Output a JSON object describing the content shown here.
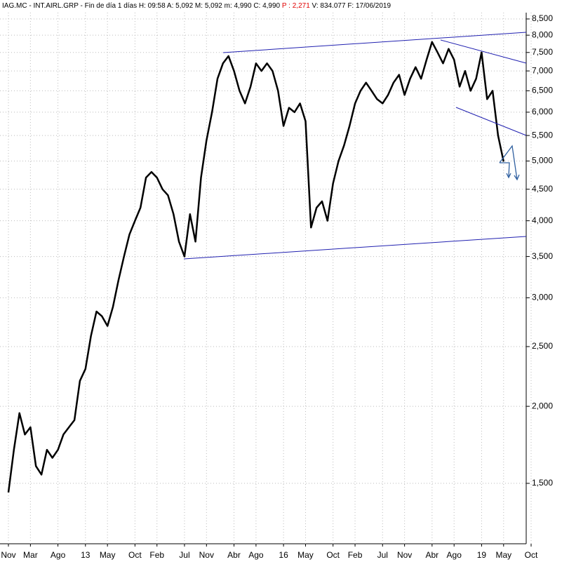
{
  "chart_data": {
    "type": "line",
    "title": "IAG.MC - INT.AIRL.GRP - Fin de día 1 días H: 09:58 A: 5,092 M: 5,092 m: 4,990 C: 4,990",
    "change": "P : 2,271",
    "info": "V: 834.077 F: 17/06/2019",
    "categories": [
      "Nov",
      null,
      null,
      null,
      "Mar",
      null,
      null,
      null,
      null,
      "Ago",
      null,
      null,
      null,
      null,
      "13",
      null,
      null,
      null,
      "May",
      null,
      null,
      null,
      null,
      "Oct",
      null,
      null,
      null,
      "Feb",
      null,
      null,
      null,
      null,
      "Jul",
      null,
      null,
      null,
      "Nov",
      null,
      null,
      null,
      null,
      "Abr",
      null,
      null,
      null,
      "Ago",
      null,
      null,
      null,
      null,
      "16",
      null,
      null,
      null,
      "May",
      null,
      null,
      null,
      null,
      "Oct",
      null,
      null,
      null,
      "Feb",
      null,
      null,
      null,
      null,
      "Jul",
      null,
      null,
      null,
      "Nov",
      null,
      null,
      null,
      null,
      "Abr",
      null,
      null,
      null,
      "Ago",
      null,
      null,
      null,
      null,
      "19",
      null,
      null,
      null,
      "May",
      null,
      null,
      null,
      null,
      "Oct"
    ],
    "series": [
      {
        "name": "IAG.MC",
        "color": "#000000",
        "values": [
          1450,
          1700,
          1950,
          1800,
          1850,
          1600,
          1550,
          1700,
          1650,
          1700,
          1800,
          1850,
          1900,
          2200,
          2300,
          2600,
          2850,
          2800,
          2700,
          2900,
          3200,
          3500,
          3800,
          4000,
          4200,
          4700,
          4800,
          4700,
          4500,
          4400,
          4100,
          3700,
          3500,
          4100,
          3700,
          4700,
          5400,
          6000,
          6800,
          7200,
          7400,
          7000,
          6500,
          6200,
          6600,
          7200,
          7000,
          7200,
          7000,
          6500,
          5700,
          6100,
          6000,
          6200,
          5800,
          3900,
          4200,
          4300,
          4000,
          4600,
          5000,
          5300,
          5700,
          6200,
          6500,
          6700,
          6500,
          6300,
          6200,
          6400,
          6700,
          6900,
          6400,
          6800,
          7100,
          6800,
          7300,
          7800,
          7500,
          7200,
          7600,
          7300,
          6600,
          7000,
          6500,
          6800,
          7500,
          6300,
          6500,
          5500,
          4990,
          null,
          null,
          null,
          null,
          null
        ]
      }
    ],
    "log_y": true,
    "grid": true,
    "ylim": [
      1197,
      8703
    ],
    "yticks": [
      {
        "value": 1500,
        "label": "1,500"
      },
      {
        "value": 2000,
        "label": "2,000"
      },
      {
        "value": 2500,
        "label": "2,500"
      },
      {
        "value": 3000,
        "label": "3,000"
      },
      {
        "value": 3500,
        "label": "3,500"
      },
      {
        "value": 4000,
        "label": "4,000"
      },
      {
        "value": 4500,
        "label": "4,500"
      },
      {
        "value": 5000,
        "label": "5,000"
      },
      {
        "value": 5500,
        "label": "5,500"
      },
      {
        "value": 6000,
        "label": "6,000"
      },
      {
        "value": 6500,
        "label": "6,500"
      },
      {
        "value": 7000,
        "label": "7,000"
      },
      {
        "value": 7500,
        "label": "7,500"
      },
      {
        "value": 8000,
        "label": "8,000"
      },
      {
        "value": 8500,
        "label": "8,500"
      }
    ]
  }
}
